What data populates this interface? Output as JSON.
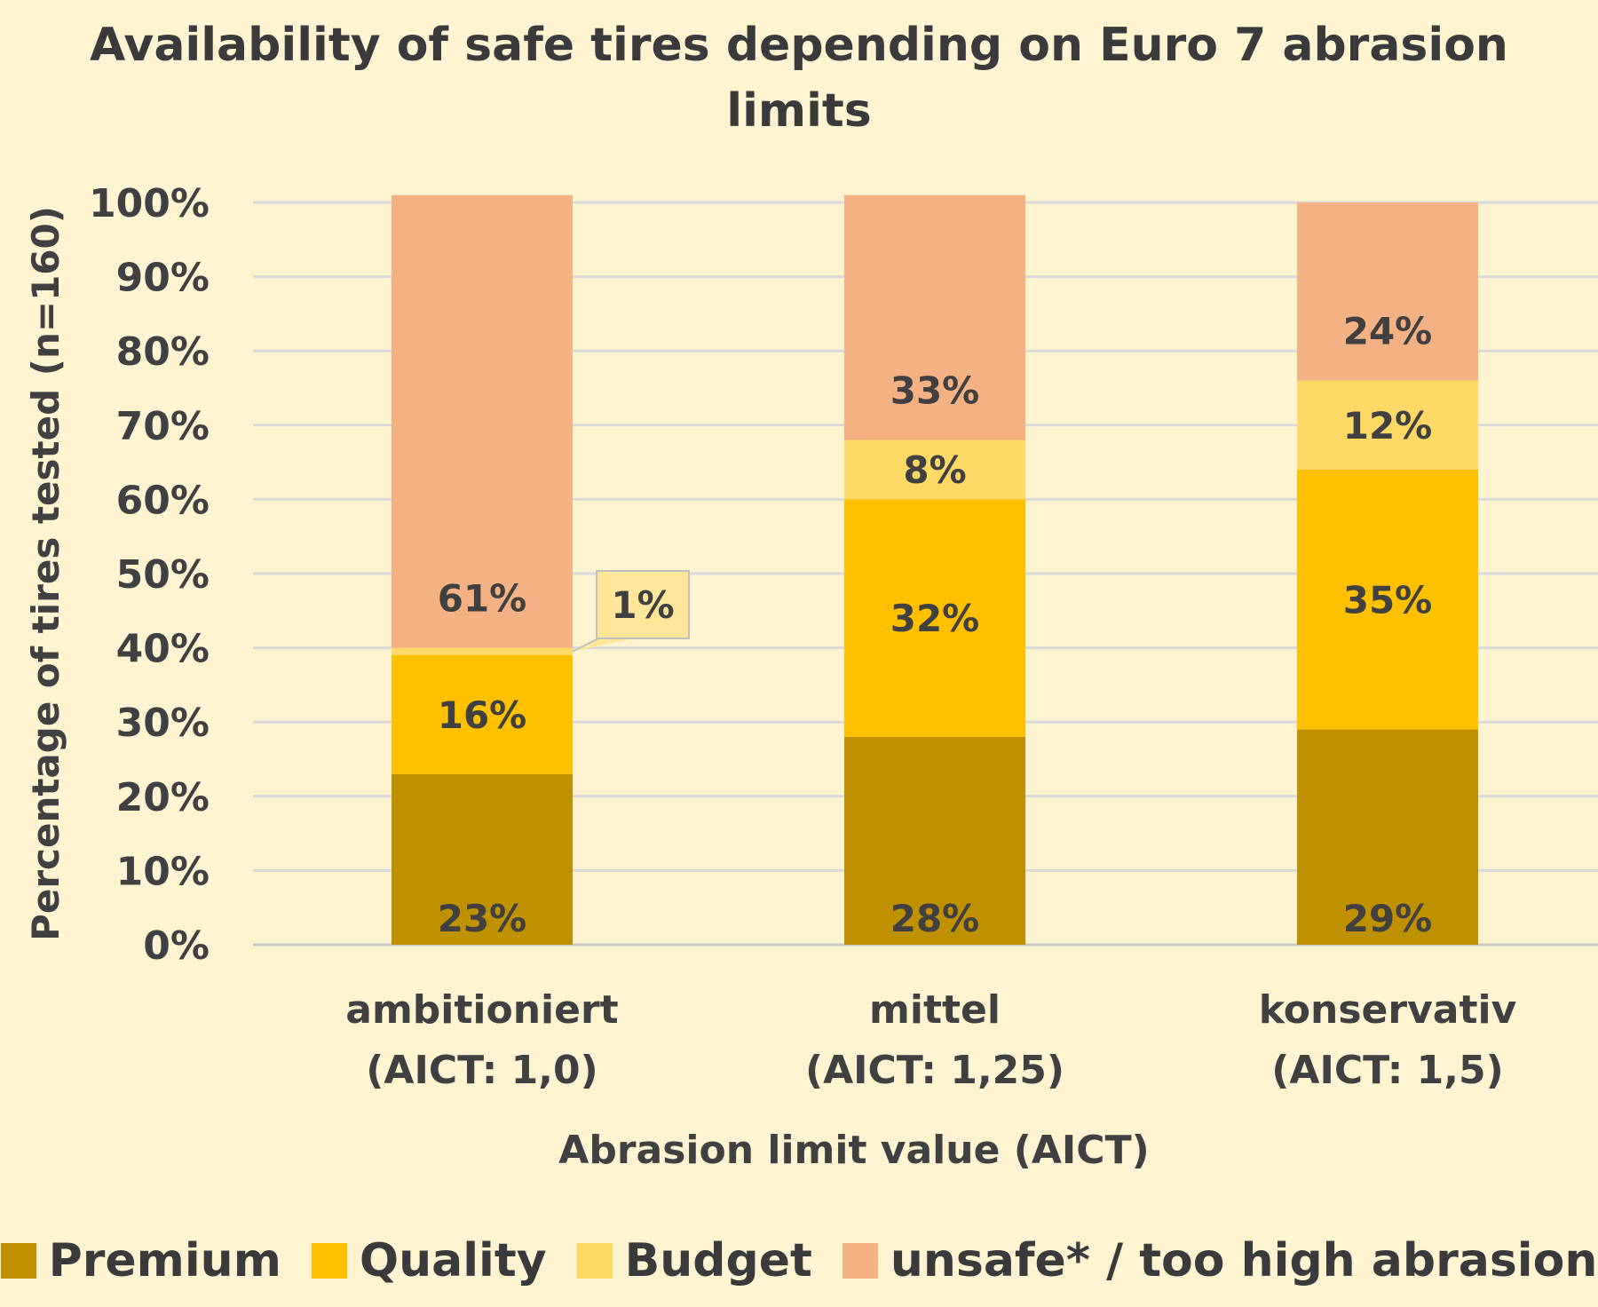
{
  "chart_data": {
    "type": "bar",
    "stacked": true,
    "title": "Availability of safe tires depending on Euro 7 abrasion limits",
    "ylabel": "Percentage of tires tested (n=160)",
    "xlabel": "Abrasion limit value (AICT)",
    "ylim": [
      0,
      100
    ],
    "y_ticks": [
      "0%",
      "10%",
      "20%",
      "30%",
      "40%",
      "50%",
      "60%",
      "70%",
      "80%",
      "90%",
      "100%"
    ],
    "grid": true,
    "legend_position": "bottom",
    "categories": [
      [
        "ambitioniert",
        "(AICT: 1,0)"
      ],
      [
        "mittel",
        "(AICT: 1,25)"
      ],
      [
        "konservativ",
        "(AICT: 1,5)"
      ]
    ],
    "series": [
      {
        "name": "Premium",
        "color": "#BF9000",
        "values": [
          23,
          28,
          29
        ],
        "labels": [
          "23%",
          "28%",
          "29%"
        ]
      },
      {
        "name": "Quality",
        "color": "#FFC000",
        "values": [
          16,
          32,
          35
        ],
        "labels": [
          "16%",
          "32%",
          "35%"
        ]
      },
      {
        "name": "Budget",
        "color": "#FFD966",
        "values": [
          1,
          8,
          12
        ],
        "labels": [
          "1%",
          "8%",
          "12%"
        ]
      },
      {
        "name": "unsafe* / too high abrasion",
        "color": "#F4B183",
        "values": [
          61,
          33,
          24
        ],
        "labels": [
          "61%",
          "33%",
          "24%"
        ]
      }
    ]
  }
}
